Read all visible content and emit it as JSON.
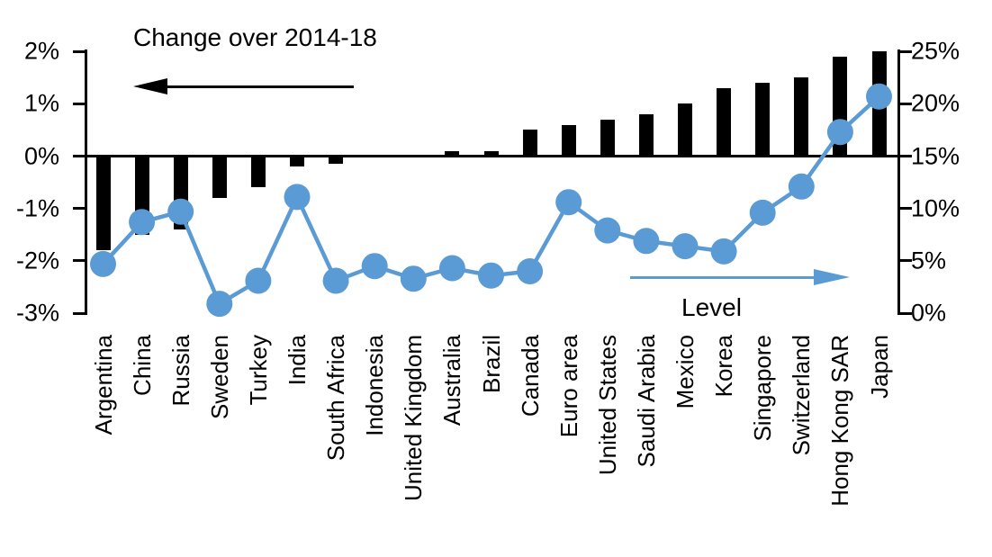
{
  "chart_data": {
    "type": "bar",
    "subtype": "dual-axis bar + line with markers",
    "categories": [
      "Argentina",
      "China",
      "Russia",
      "Sweden",
      "Turkey",
      "India",
      "South Africa",
      "Indonesia",
      "United Kingdom",
      "Australia",
      "Brazil",
      "Canada",
      "Euro area",
      "United States",
      "Saudi Arabia",
      "Mexico",
      "Korea",
      "Singapore",
      "Switzerland",
      "Hong Kong SAR",
      "Japan"
    ],
    "series": [
      {
        "name": "Change over 2014-18",
        "type": "bar",
        "axis": "left",
        "unit": "percentage points",
        "values": [
          -1.8,
          -1.5,
          -1.4,
          -0.8,
          -0.6,
          -0.2,
          -0.15,
          0,
          0,
          0.1,
          0.1,
          0.5,
          0.6,
          0.7,
          0.8,
          1.0,
          1.3,
          1.4,
          1.5,
          1.9,
          2.0
        ]
      },
      {
        "name": "Level",
        "type": "line",
        "axis": "right",
        "unit": "%",
        "values": [
          4.7,
          8.7,
          9.7,
          0.9,
          3.1,
          11.1,
          3.1,
          4.5,
          3.3,
          4.3,
          3.6,
          4.0,
          10.6,
          7.9,
          6.9,
          6.4,
          5.9,
          9.6,
          12.1,
          17.3,
          20.7
        ]
      }
    ],
    "left_axis": {
      "tick_labels": [
        "2%",
        "1%",
        "0%",
        "-1%",
        "-2%",
        "-3%"
      ],
      "tick_values": [
        2,
        1,
        0,
        -1,
        -2,
        -3
      ],
      "min": -3,
      "max": 2
    },
    "right_axis": {
      "tick_labels": [
        "25%",
        "20%",
        "15%",
        "10%",
        "5%",
        "0%"
      ],
      "tick_values": [
        25,
        20,
        15,
        10,
        5,
        0
      ],
      "min": 0,
      "max": 25
    },
    "annotations": {
      "bar_series_label": "Change over 2014-18",
      "line_series_label": "Level"
    },
    "legend_position": "arrows pointing to respective axes (left arrow = bars/left axis, right arrow = line/right axis)",
    "grid": false,
    "colors": {
      "bar": "#000000",
      "line": "#5b9bd5",
      "background": "#ffffff"
    }
  }
}
